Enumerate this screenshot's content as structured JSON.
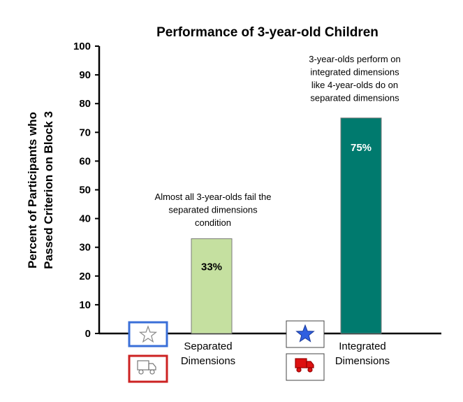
{
  "chart_data": {
    "type": "bar",
    "title": "Performance of 3-year-old Children",
    "ylabel": "Percent of Participants who Passed Criterion on Block 3",
    "ylabel_lines": [
      "Percent of Participants who",
      "Passed Criterion on Block 3"
    ],
    "xlabel": "",
    "ylim": [
      0,
      100
    ],
    "yticks": [
      0,
      10,
      20,
      30,
      40,
      50,
      60,
      70,
      80,
      90,
      100
    ],
    "categories": [
      "Separated Dimensions",
      "Integrated Dimensions"
    ],
    "category_lines": [
      [
        "Separated",
        "Dimensions"
      ],
      [
        "Integrated",
        "Dimensions"
      ]
    ],
    "values": [
      33,
      75
    ],
    "data_labels": [
      "33%",
      "75%"
    ],
    "bar_colors": [
      "#c5e0a0",
      "#007a6e"
    ],
    "data_label_colors": [
      "#000000",
      "#ffffff"
    ],
    "annotations": [
      {
        "category": "Separated Dimensions",
        "lines": [
          "Almost all 3-year-olds fail the",
          "separated dimensions",
          "condition"
        ]
      },
      {
        "category": "Integrated Dimensions",
        "lines": [
          "3-year-olds perform on",
          "integrated dimensions",
          "like 4-year-olds do on",
          "separated dimensions"
        ]
      }
    ],
    "stimulus_icons": [
      {
        "category": "Separated Dimensions",
        "icons": [
          "star-outline-icon",
          "truck-outline-icon"
        ],
        "frame_colors": [
          "#3a6fd8",
          "#cc2222"
        ]
      },
      {
        "category": "Integrated Dimensions",
        "icons": [
          "star-blue-icon",
          "truck-red-icon"
        ],
        "frame_colors": [
          "#444444",
          "#444444"
        ]
      }
    ],
    "grid": false,
    "legend": "none"
  }
}
